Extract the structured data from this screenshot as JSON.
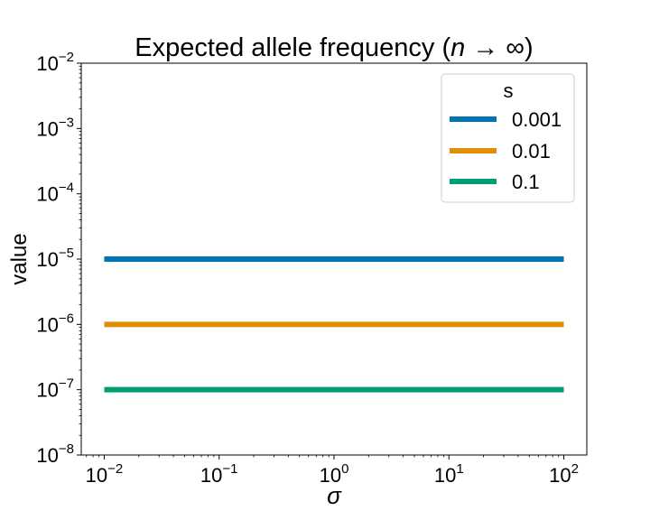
{
  "chart_data": {
    "type": "line",
    "title_prefix": "Expected allele frequency (",
    "title_n": "n",
    "title_arrow": " → ∞)",
    "xlabel": "σ",
    "ylabel": "value",
    "xscale": "log",
    "yscale": "log",
    "xlim_exp": [
      -2.2,
      2.2
    ],
    "ylim_exp": [
      -8,
      -2
    ],
    "x_tick_exponents": [
      "−2",
      "−1",
      "0",
      "1",
      "2"
    ],
    "y_tick_exponents": [
      "−8",
      "−7",
      "−6",
      "−5",
      "−4",
      "−3",
      "−2"
    ],
    "tick_base": "10",
    "x": [
      0.01,
      100
    ],
    "series": [
      {
        "name": "0.001",
        "values": [
          1e-05,
          1e-05
        ],
        "color": "#0173b2"
      },
      {
        "name": "0.01",
        "values": [
          1e-06,
          1e-06
        ],
        "color": "#de8f05"
      },
      {
        "name": "0.1",
        "values": [
          1e-07,
          1e-07
        ],
        "color": "#029e73"
      }
    ],
    "legend": {
      "title": "s",
      "placement": "top-right"
    },
    "grid": false
  }
}
